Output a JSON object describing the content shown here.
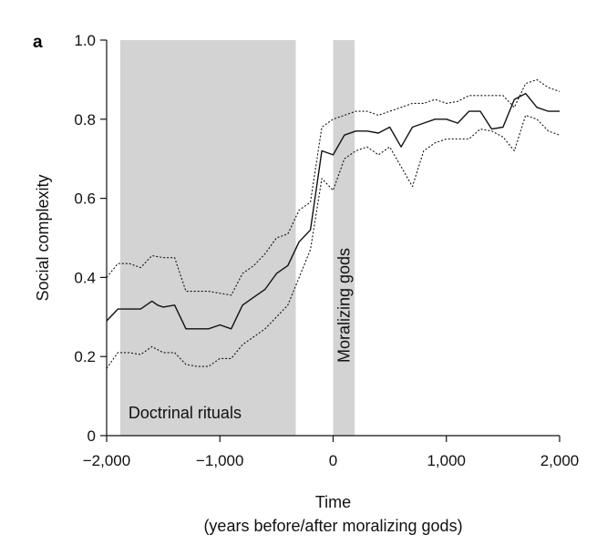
{
  "chart_data": {
    "type": "line",
    "panel_label": "a",
    "title": "",
    "xlabel": "Time",
    "xlabel_sub": "(years before/after moralizing gods)",
    "ylabel": "Social complexity",
    "xlim": [
      -2000,
      2000
    ],
    "ylim": [
      0,
      1.0
    ],
    "x_ticks": [
      -2000,
      -1000,
      0,
      1000,
      2000
    ],
    "x_tick_labels": [
      "−2,000",
      "−1,000",
      "0",
      "1,000",
      "2,000"
    ],
    "y_ticks": [
      0,
      0.2,
      0.4,
      0.6,
      0.8,
      1.0
    ],
    "y_tick_labels": [
      "0",
      "0.2",
      "0.4",
      "0.6",
      "0.8",
      "1.0"
    ],
    "grid": false,
    "shaded_regions": [
      {
        "label": "Doctrinal rituals",
        "x_start": -1880,
        "x_end": -330,
        "color": "#d3d3d3",
        "label_orientation": "horizontal"
      },
      {
        "label": "Moralizing gods",
        "x_start": 0,
        "x_end": 190,
        "color": "#d3d3d3",
        "label_orientation": "vertical"
      }
    ],
    "series": [
      {
        "style": "solid",
        "x": [
          -2000,
          -1900,
          -1800,
          -1700,
          -1600,
          -1550,
          -1500,
          -1400,
          -1300,
          -1200,
          -1100,
          -1000,
          -900,
          -800,
          -700,
          -600,
          -500,
          -400,
          -300,
          -200,
          -100,
          0,
          100,
          200,
          300,
          400,
          500,
          600,
          700,
          800,
          900,
          1000,
          1100,
          1200,
          1300,
          1400,
          1500,
          1600,
          1700,
          1800,
          1900,
          2000
        ],
        "values": [
          0.29,
          0.32,
          0.32,
          0.32,
          0.34,
          0.33,
          0.325,
          0.33,
          0.27,
          0.27,
          0.27,
          0.28,
          0.27,
          0.33,
          0.35,
          0.37,
          0.41,
          0.43,
          0.49,
          0.52,
          0.72,
          0.71,
          0.76,
          0.77,
          0.77,
          0.765,
          0.78,
          0.73,
          0.78,
          0.79,
          0.8,
          0.8,
          0.79,
          0.82,
          0.82,
          0.775,
          0.78,
          0.85,
          0.865,
          0.83,
          0.82,
          0.82
        ]
      },
      {
        "style": "dotted",
        "x": [
          -2000,
          -1900,
          -1800,
          -1700,
          -1600,
          -1500,
          -1400,
          -1300,
          -1200,
          -1100,
          -1000,
          -900,
          -800,
          -700,
          -600,
          -500,
          -400,
          -300,
          -200,
          -100,
          0,
          100,
          200,
          300,
          400,
          500,
          600,
          700,
          800,
          900,
          1000,
          1100,
          1200,
          1300,
          1400,
          1500,
          1600,
          1700,
          1800,
          1900,
          2000
        ],
        "values": [
          0.4,
          0.435,
          0.435,
          0.425,
          0.455,
          0.45,
          0.45,
          0.365,
          0.365,
          0.365,
          0.36,
          0.355,
          0.41,
          0.43,
          0.46,
          0.5,
          0.51,
          0.57,
          0.59,
          0.78,
          0.8,
          0.81,
          0.82,
          0.82,
          0.81,
          0.82,
          0.83,
          0.84,
          0.84,
          0.85,
          0.84,
          0.845,
          0.86,
          0.86,
          0.86,
          0.86,
          0.83,
          0.89,
          0.9,
          0.88,
          0.87
        ]
      },
      {
        "style": "dotted",
        "x": [
          -2000,
          -1900,
          -1800,
          -1700,
          -1600,
          -1500,
          -1400,
          -1300,
          -1200,
          -1100,
          -1000,
          -900,
          -800,
          -700,
          -600,
          -500,
          -400,
          -300,
          -200,
          -100,
          0,
          100,
          200,
          300,
          400,
          500,
          600,
          700,
          800,
          900,
          1000,
          1100,
          1200,
          1300,
          1400,
          1500,
          1600,
          1700,
          1800,
          1900,
          2000
        ],
        "values": [
          0.17,
          0.21,
          0.21,
          0.205,
          0.225,
          0.21,
          0.21,
          0.18,
          0.175,
          0.175,
          0.195,
          0.195,
          0.23,
          0.25,
          0.27,
          0.3,
          0.33,
          0.4,
          0.47,
          0.65,
          0.62,
          0.7,
          0.72,
          0.73,
          0.71,
          0.73,
          0.68,
          0.63,
          0.72,
          0.74,
          0.75,
          0.75,
          0.75,
          0.775,
          0.77,
          0.755,
          0.72,
          0.81,
          0.8,
          0.77,
          0.76
        ]
      }
    ]
  }
}
